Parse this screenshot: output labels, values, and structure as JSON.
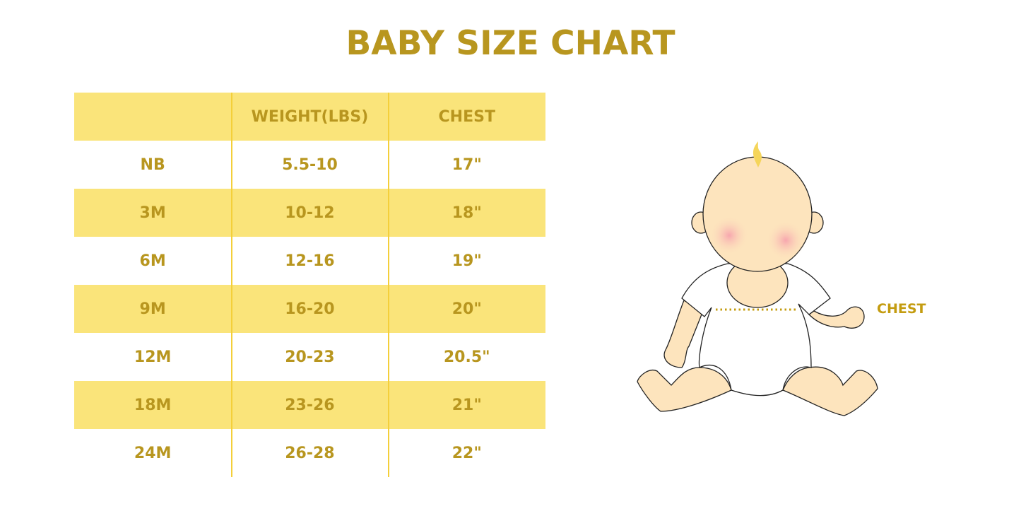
{
  "title": "BABY SIZE CHART",
  "table": {
    "headers": [
      "",
      "WEIGHT(LBS)",
      "CHEST"
    ],
    "rows": [
      [
        "NB",
        "5.5-10",
        "17\""
      ],
      [
        "3M",
        "10-12",
        "18\""
      ],
      [
        "6M",
        "12-16",
        "19\""
      ],
      [
        "9M",
        "16-20",
        "20\""
      ],
      [
        "12M",
        "20-23",
        "20.5\""
      ],
      [
        "18M",
        "23-26",
        "21\""
      ],
      [
        "24M",
        "26-28",
        "22\""
      ]
    ]
  },
  "illustration": {
    "chest_label": "CHEST"
  },
  "colors": {
    "gold": "#b8961f",
    "yellow": "#fae47a",
    "skin": "#fde4bd"
  }
}
